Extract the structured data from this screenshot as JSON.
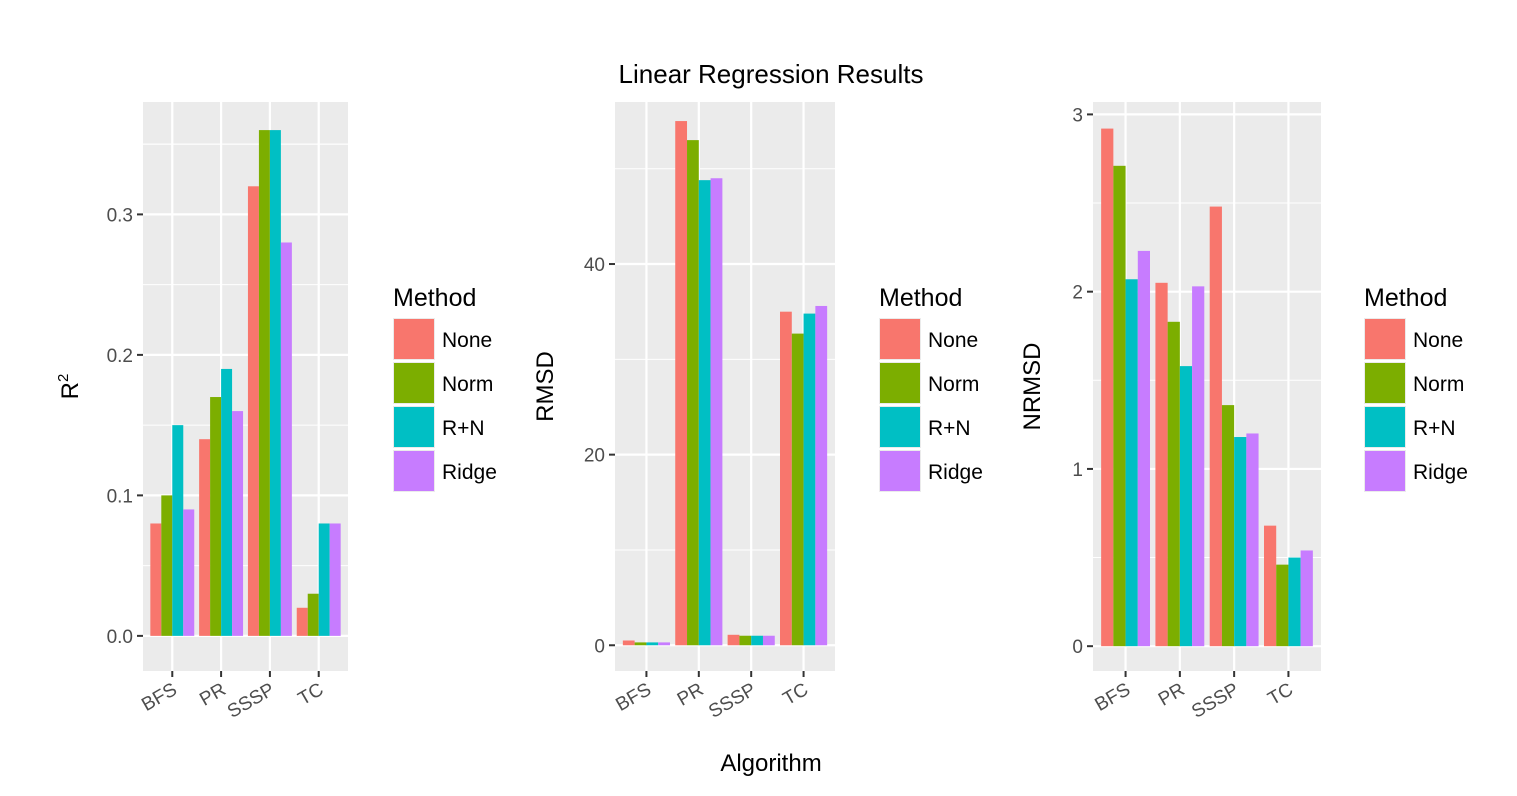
{
  "title": "Linear Regression Results",
  "xlabel": "Algorithm",
  "colors": {
    "panel_bg": "#ebebeb",
    "grid": "#ffffff",
    "tick": "#333333"
  },
  "chart_data": [
    {
      "type": "bar",
      "title": "",
      "ylabel": "R",
      "ylabel_superscript": "2",
      "xlabel": "",
      "categories": [
        "BFS",
        "PR",
        "SSSP",
        "TC"
      ],
      "ylim": [
        -0.025,
        0.38
      ],
      "yticks": [
        0.0,
        0.1,
        0.2,
        0.3
      ],
      "ytick_labels": [
        "0.0",
        "0.1",
        "0.2",
        "0.3"
      ],
      "grid": true,
      "series": [
        {
          "name": "None",
          "color": "#F8766D",
          "values": [
            0.08,
            0.14,
            0.32,
            0.02
          ]
        },
        {
          "name": "Norm",
          "color": "#7CAE00",
          "values": [
            0.1,
            0.17,
            0.36,
            0.03
          ]
        },
        {
          "name": "R+N",
          "color": "#00BFC4",
          "values": [
            0.15,
            0.19,
            0.36,
            0.08
          ]
        },
        {
          "name": "Ridge",
          "color": "#C77CFF",
          "values": [
            0.09,
            0.16,
            0.28,
            0.08
          ]
        }
      ],
      "legend": {
        "title": "Method",
        "placement": "right"
      }
    },
    {
      "type": "bar",
      "title": "",
      "ylabel": "RMSD",
      "xlabel": "",
      "categories": [
        "BFS",
        "PR",
        "SSSP",
        "TC"
      ],
      "ylim": [
        -2.7,
        57
      ],
      "yticks": [
        0,
        20,
        40
      ],
      "ytick_labels": [
        "0",
        "20",
        "40"
      ],
      "grid": true,
      "series": [
        {
          "name": "None",
          "color": "#F8766D",
          "values": [
            0.5,
            55.0,
            1.1,
            35.0
          ]
        },
        {
          "name": "Norm",
          "color": "#7CAE00",
          "values": [
            0.3,
            53.0,
            1.0,
            32.7
          ]
        },
        {
          "name": "R+N",
          "color": "#00BFC4",
          "values": [
            0.3,
            48.8,
            1.0,
            34.8
          ]
        },
        {
          "name": "Ridge",
          "color": "#C77CFF",
          "values": [
            0.3,
            49.0,
            1.0,
            35.6
          ]
        }
      ],
      "legend": {
        "title": "Method",
        "placement": "right"
      }
    },
    {
      "type": "bar",
      "title": "",
      "ylabel": "NRMSD",
      "xlabel": "",
      "categories": [
        "BFS",
        "PR",
        "SSSP",
        "TC"
      ],
      "ylim": [
        -0.14,
        3.07
      ],
      "yticks": [
        0,
        1,
        2,
        3
      ],
      "ytick_labels": [
        "0",
        "1",
        "2",
        "3"
      ],
      "grid": true,
      "series": [
        {
          "name": "None",
          "color": "#F8766D",
          "values": [
            2.92,
            2.05,
            2.48,
            0.68
          ]
        },
        {
          "name": "Norm",
          "color": "#7CAE00",
          "values": [
            2.71,
            1.83,
            1.36,
            0.46
          ]
        },
        {
          "name": "R+N",
          "color": "#00BFC4",
          "values": [
            2.07,
            1.58,
            1.18,
            0.5
          ]
        },
        {
          "name": "Ridge",
          "color": "#C77CFF",
          "values": [
            2.23,
            2.03,
            1.2,
            0.54
          ]
        }
      ],
      "legend": {
        "title": "Method",
        "placement": "right"
      }
    }
  ]
}
